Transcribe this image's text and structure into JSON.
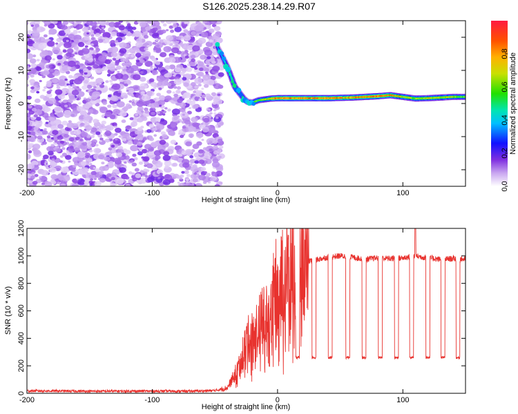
{
  "title": "S126.2025.238.14.29.R07",
  "chart_data": [
    {
      "type": "heatmap",
      "name": "spectrogram",
      "xlabel": "Height of straight line (km)",
      "ylabel": "Frequency (Hz)",
      "xlim": [
        -200,
        150
      ],
      "ylim": [
        -25,
        25
      ],
      "xticks": [
        -200,
        -100,
        0,
        100
      ],
      "yticks": [
        -20,
        -10,
        0,
        10,
        20
      ],
      "noise_region_x": [
        -200,
        -48
      ],
      "ridge": {
        "x": [
          -48,
          -44,
          -40,
          -37,
          -34,
          -30,
          -27,
          -24,
          -20,
          -15,
          -5,
          0,
          20,
          40,
          60,
          80,
          90,
          100,
          110,
          120,
          130,
          140,
          150
        ],
        "freq": [
          17,
          14,
          11,
          8,
          5,
          3,
          1.5,
          0.5,
          0.3,
          1,
          1.5,
          1.6,
          1.6,
          1.6,
          1.8,
          2.2,
          2.5,
          2.0,
          1.5,
          1.6,
          1.8,
          2.0,
          2.0
        ],
        "amp": [
          0.35,
          0.4,
          0.45,
          0.5,
          0.55,
          0.5,
          0.5,
          0.5,
          0.55,
          0.6,
          0.75,
          0.85,
          0.85,
          0.85,
          0.8,
          0.9,
          0.8,
          0.7,
          0.65,
          0.7,
          0.7,
          0.65,
          0.6
        ]
      },
      "colorbar": {
        "label": "Normalized spectral amplitude",
        "range": [
          0,
          1
        ],
        "ticks": [
          "0.0",
          "0.2",
          "0.4",
          "0.6",
          "0.8"
        ],
        "tick_values": [
          0,
          0.2,
          0.4,
          0.6,
          0.8
        ]
      }
    },
    {
      "type": "line",
      "name": "snr",
      "xlabel": "Height of straight line (km)",
      "ylabel": "SNR (10 * v/v)",
      "xlim": [
        -200,
        150
      ],
      "ylim": [
        0,
        1200
      ],
      "xticks": [
        -200,
        -100,
        0,
        100
      ],
      "yticks": [
        0,
        200,
        400,
        600,
        800,
        1000,
        1200
      ],
      "series": [
        {
          "name": "SNR",
          "color": "#e8322e",
          "x": [
            -200,
            -150,
            -100,
            -70,
            -50,
            -40,
            -35,
            -30,
            -25,
            -20,
            -15,
            -10,
            -5,
            0,
            5,
            10,
            15,
            20,
            25,
            30,
            40,
            50,
            60,
            70,
            80,
            90,
            100,
            110,
            120,
            130,
            140,
            150
          ],
          "y": [
            18,
            15,
            16,
            15,
            20,
            40,
            120,
            220,
            380,
            420,
            500,
            560,
            650,
            820,
            870,
            900,
            930,
            950,
            960,
            970,
            990,
            1000,
            990,
            975,
            985,
            980,
            985,
            1000,
            985,
            975,
            980,
            975
          ],
          "dropouts_x": [
            16,
            29,
            42,
            56,
            69,
            82,
            95,
            107,
            120,
            132,
            144
          ],
          "dropout_level": 260,
          "spike": {
            "x": 110,
            "y": 1200
          }
        }
      ]
    }
  ]
}
